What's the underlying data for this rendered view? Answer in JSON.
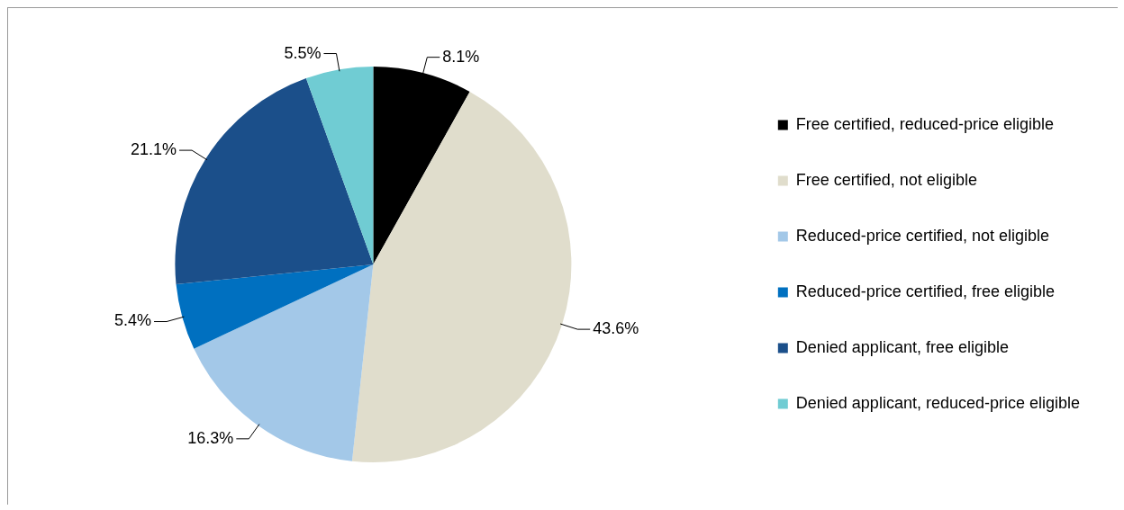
{
  "chart_data": {
    "type": "pie",
    "categories": [
      "Free certified, reduced-price eligible",
      "Free certified, not eligible",
      "Reduced-price certified, not eligible",
      "Reduced-price certified, free eligible",
      "Denied applicant, free eligible",
      "Denied applicant, reduced-price eligible"
    ],
    "values": [
      8.1,
      43.6,
      16.3,
      5.4,
      21.1,
      5.5
    ],
    "value_labels": [
      "8.1%",
      "43.6%",
      "16.3%",
      "5.4%",
      "21.1%",
      "5.5%"
    ],
    "colors": [
      "#000000",
      "#e0ddcc",
      "#a3c8e8",
      "#0070c0",
      "#1b4f8a",
      "#70ccd3"
    ],
    "legend": "right"
  }
}
